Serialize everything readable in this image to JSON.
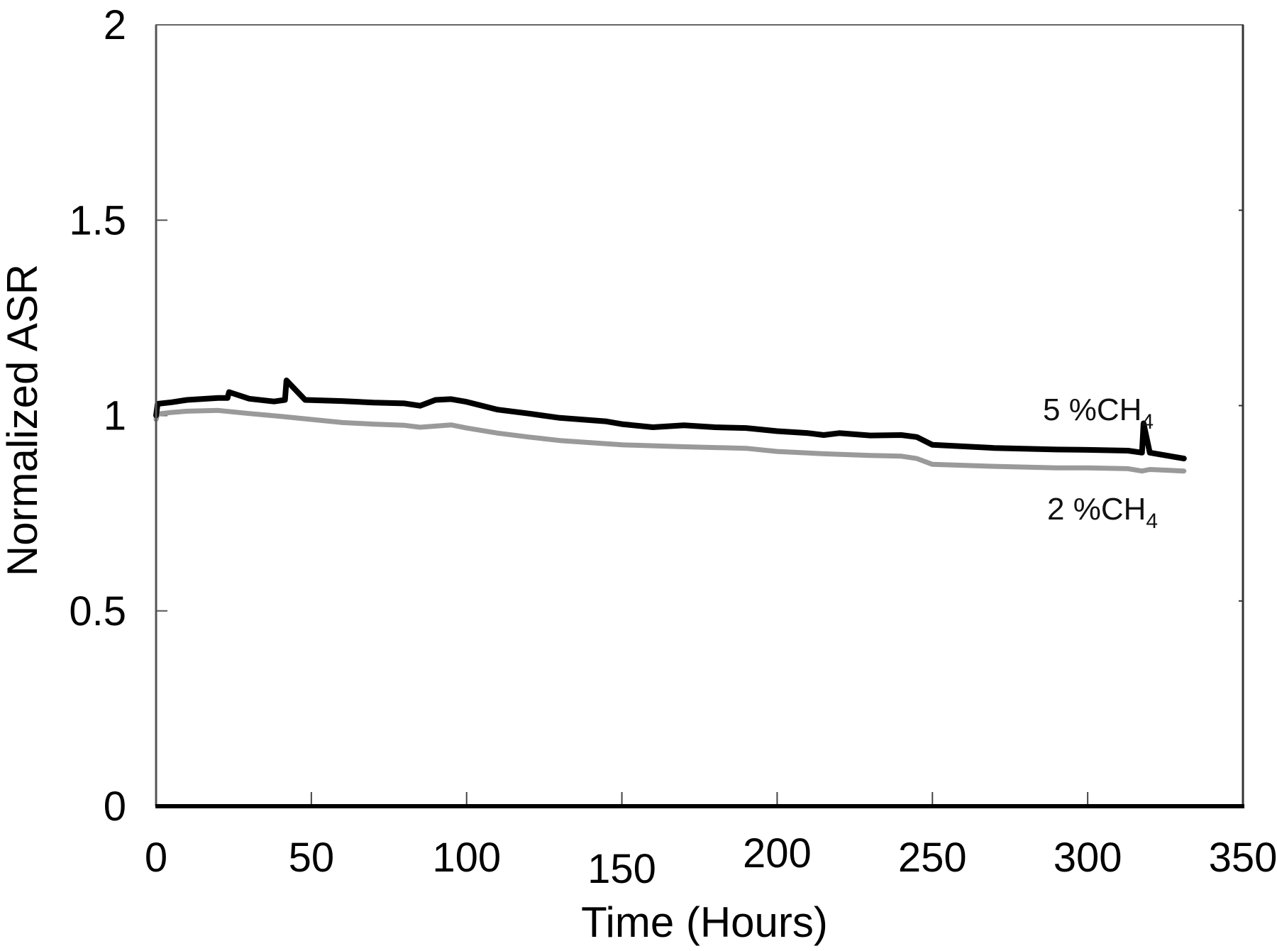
{
  "chart_data": {
    "type": "line",
    "title": "",
    "xlabel": "Time (Hours)",
    "ylabel": "Normalized ASR",
    "xlim": [
      0,
      350
    ],
    "ylim": [
      0,
      2
    ],
    "xticks": [
      0,
      50,
      100,
      150,
      200,
      250,
      300,
      350
    ],
    "yticks": [
      0,
      0.5,
      1,
      1.5,
      2
    ],
    "xtick_labels": [
      "0",
      "50",
      "100",
      "150",
      "200",
      "250",
      "300",
      "350"
    ],
    "ytick_labels": [
      "0",
      "0.5",
      "1",
      "1.5",
      "2"
    ],
    "grid": false,
    "legend": "inline labels at right end of curves",
    "series": [
      {
        "name": "5 %CH4",
        "label_main": "5 %CH",
        "label_sub": "4",
        "color": "#000000",
        "x": [
          0,
          0.5,
          5,
          10,
          20,
          23,
          23.5,
          30,
          38,
          41.5,
          42,
          48,
          60,
          70,
          80,
          85,
          90,
          95,
          100,
          110,
          120,
          130,
          145,
          150,
          160,
          170,
          180,
          190,
          200,
          210,
          215,
          220,
          230,
          240,
          245,
          250,
          270,
          290,
          300,
          313,
          317.5,
          318,
          320,
          331
        ],
        "y": [
          1.0,
          1.03,
          1.034,
          1.04,
          1.045,
          1.045,
          1.06,
          1.043,
          1.036,
          1.04,
          1.09,
          1.04,
          1.037,
          1.033,
          1.031,
          1.025,
          1.04,
          1.042,
          1.035,
          1.015,
          1.005,
          0.994,
          0.985,
          0.978,
          0.97,
          0.975,
          0.97,
          0.968,
          0.96,
          0.955,
          0.95,
          0.955,
          0.949,
          0.95,
          0.945,
          0.925,
          0.917,
          0.913,
          0.912,
          0.91,
          0.905,
          0.98,
          0.905,
          0.89
        ]
      },
      {
        "name": "2 %CH4",
        "label_main": "2 %CH",
        "label_sub": "4",
        "color": "#9a9a9a",
        "x": [
          0,
          0.5,
          5,
          10,
          20,
          30,
          40,
          50,
          60,
          70,
          80,
          85,
          90,
          95,
          100,
          110,
          120,
          130,
          150,
          170,
          180,
          190,
          200,
          215,
          230,
          240,
          245,
          250,
          270,
          290,
          300,
          313,
          317.5,
          320,
          331
        ],
        "y": [
          0.99,
          1.004,
          1.008,
          1.011,
          1.013,
          1.005,
          0.998,
          0.99,
          0.982,
          0.978,
          0.975,
          0.97,
          0.973,
          0.976,
          0.968,
          0.955,
          0.945,
          0.936,
          0.925,
          0.92,
          0.918,
          0.916,
          0.908,
          0.902,
          0.898,
          0.896,
          0.89,
          0.875,
          0.87,
          0.866,
          0.866,
          0.864,
          0.858,
          0.862,
          0.858
        ]
      }
    ]
  },
  "labels": {
    "xlabel": "Time (Hours)",
    "ylabel": "Normalized ASR",
    "series_5_main": "5 %CH",
    "series_5_sub": "4",
    "series_2_main": "2 %CH",
    "series_2_sub": "4"
  }
}
